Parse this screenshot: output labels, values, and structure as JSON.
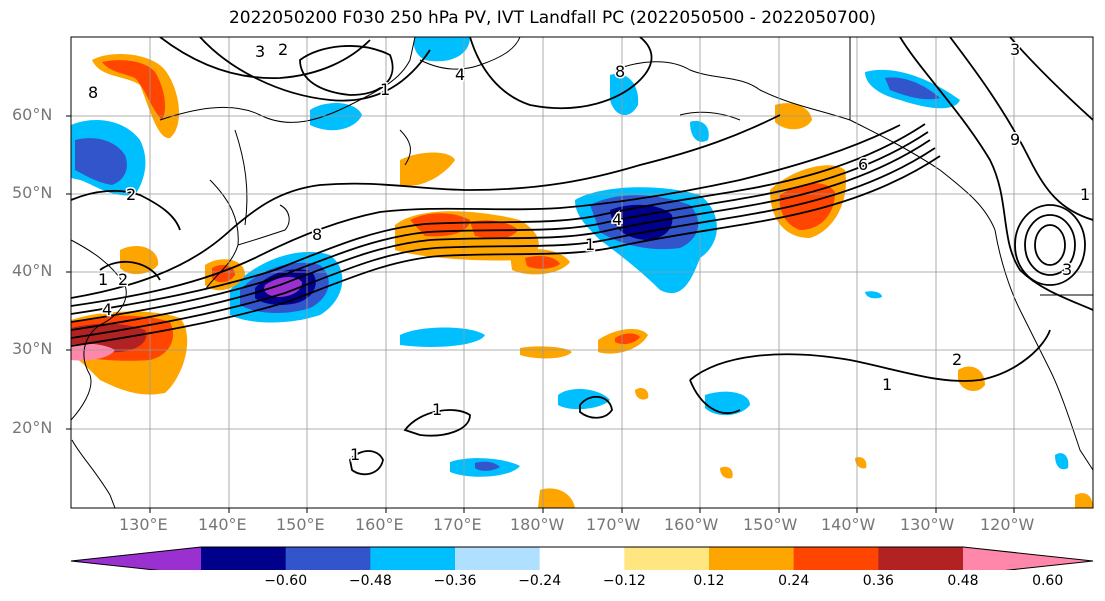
{
  "title": "2022050200 F030 250 hPa PV, IVT Landfall PC (2022050500 - 2022050700)",
  "lat_labels": [
    "60°N",
    "50°N",
    "40°N",
    "30°N",
    "20°N"
  ],
  "lon_labels": [
    "130°E",
    "140°E",
    "150°E",
    "160°E",
    "170°E",
    "180°W",
    "170°W",
    "160°W",
    "150°W",
    "140°W",
    "130°W",
    "120°W"
  ],
  "contour_labels": [
    "3",
    "2",
    "8",
    "1",
    "4",
    "8",
    "1",
    "2",
    "4",
    "2",
    "1",
    "8",
    "6",
    "1",
    "4",
    "9",
    "3",
    "1",
    "2",
    "1",
    "1",
    "3"
  ],
  "colorbar": {
    "ticks": [
      "−0.60",
      "−0.48",
      "−0.36",
      "−0.24",
      "−0.12",
      "0.12",
      "0.24",
      "0.36",
      "0.48",
      "0.60"
    ],
    "colors": [
      "#9b30d0",
      "#00008b",
      "#3355cc",
      "#00bfff",
      "#b0e0ff",
      "#ffffff",
      "#ffe680",
      "#ffa500",
      "#ff4500",
      "#b22222",
      "#ff88aa"
    ]
  },
  "colors": {
    "grid": "#999999",
    "contour": "#000000",
    "coast": "#000000",
    "tick_label": "#777777"
  }
}
